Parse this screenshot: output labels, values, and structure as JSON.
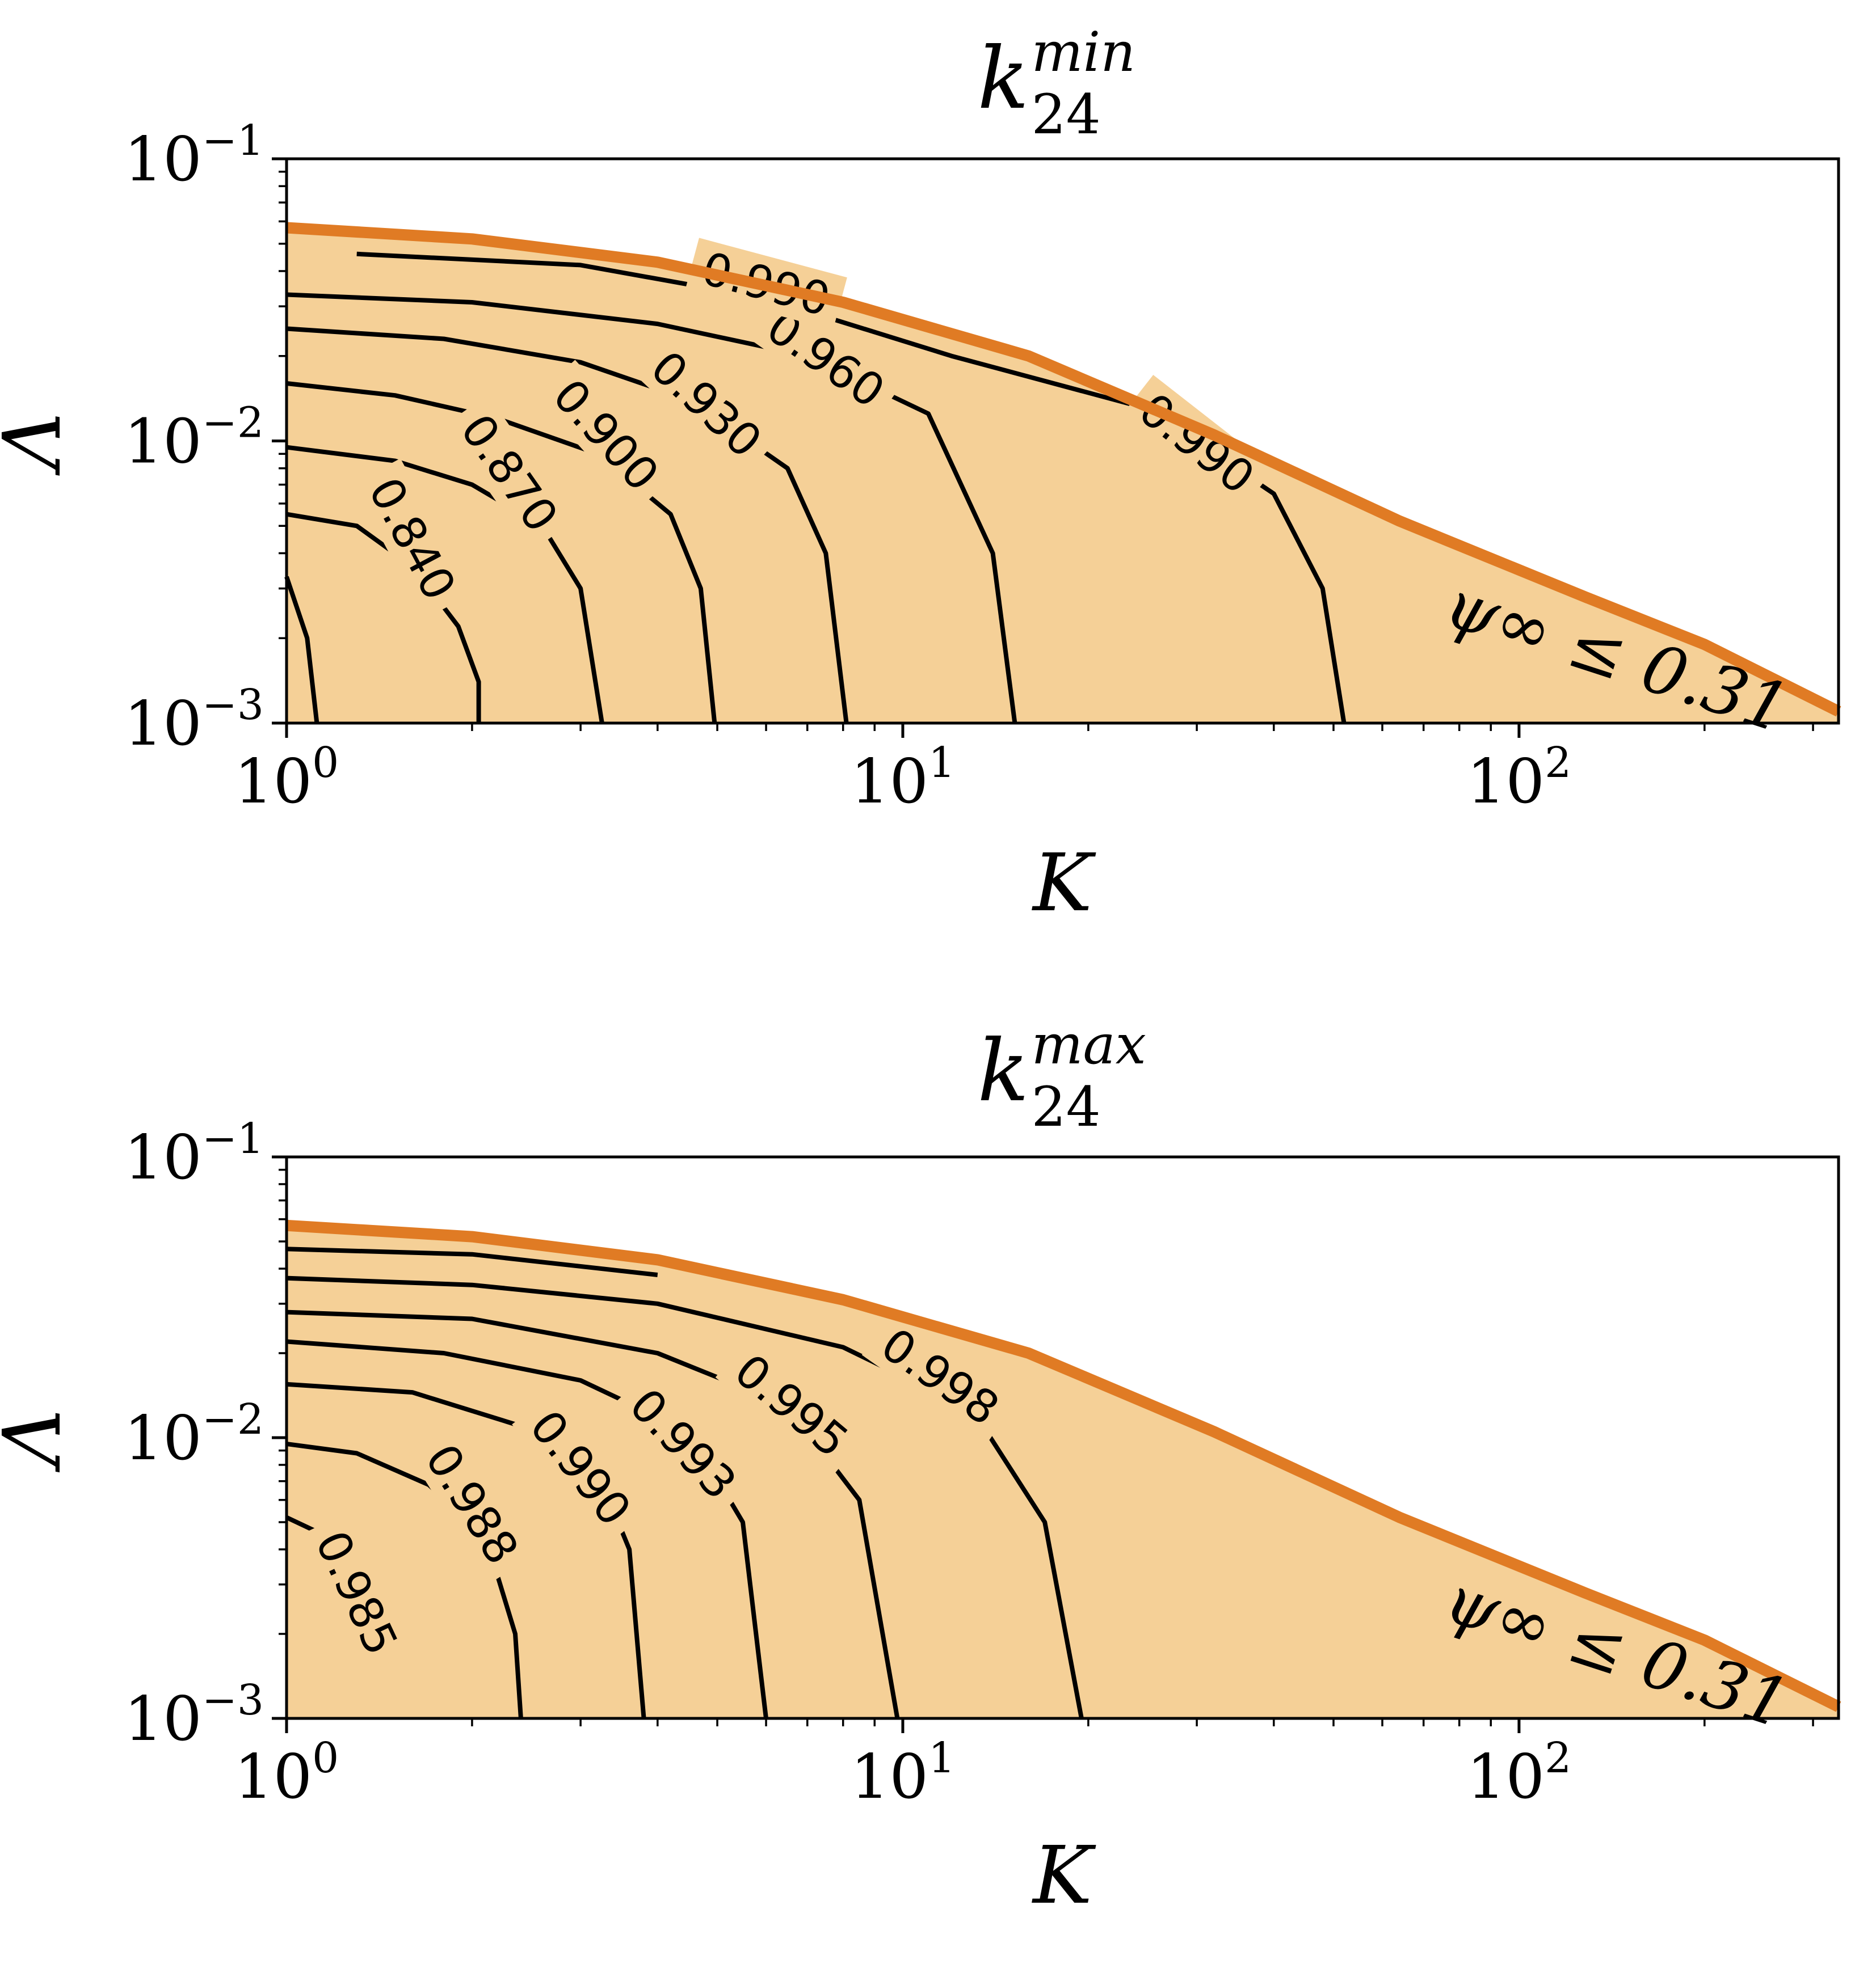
{
  "chart_data": [
    {
      "type": "contour",
      "title": {
        "base": "k",
        "sup": "min",
        "sub": "24"
      },
      "xlabel": "K",
      "ylabel": "Λ",
      "xscale": "log",
      "yscale": "log",
      "xlim": [
        1,
        330
      ],
      "ylim": [
        0.001,
        0.1
      ],
      "x_ticks": [
        {
          "base": "10",
          "exp": "0",
          "value": 1
        },
        {
          "base": "10",
          "exp": "1",
          "value": 10
        },
        {
          "base": "10",
          "exp": "2",
          "value": 100
        }
      ],
      "y_ticks": [
        {
          "base": "10",
          "exp": "−3",
          "value": 0.001
        },
        {
          "base": "10",
          "exp": "−2",
          "value": 0.01
        },
        {
          "base": "10",
          "exp": "−1",
          "value": 0.1
        }
      ],
      "fill_color": "#f5d097",
      "boundary_color": "#e07b24",
      "boundary_label": "ψ∞ ≤ 0.31",
      "boundary": [
        [
          1,
          0.057
        ],
        [
          2,
          0.052
        ],
        [
          4,
          0.043
        ],
        [
          8,
          0.031
        ],
        [
          16,
          0.02
        ],
        [
          32,
          0.0105
        ],
        [
          64,
          0.0052
        ],
        [
          128,
          0.0028
        ],
        [
          200,
          0.0019
        ],
        [
          330,
          0.0011
        ]
      ],
      "contours": [
        {
          "level": "0.840",
          "points": [
            [
              1,
              0.0033
            ],
            [
              1.08,
              0.002
            ],
            [
              1.12,
              0.001
            ]
          ]
        },
        {
          "level": "0.870",
          "points": [
            [
              1,
              0.0055
            ],
            [
              1.3,
              0.005
            ],
            [
              1.6,
              0.0036
            ],
            [
              1.9,
              0.0022
            ],
            [
              2.05,
              0.0014
            ],
            [
              2.05,
              0.001
            ]
          ]
        },
        {
          "level": "0.900",
          "points": [
            [
              1,
              0.0095
            ],
            [
              1.5,
              0.0085
            ],
            [
              2,
              0.007
            ],
            [
              2.6,
              0.005
            ],
            [
              3.0,
              0.003
            ],
            [
              3.25,
              0.001
            ]
          ]
        },
        {
          "level": "0.930",
          "points": [
            [
              1,
              0.016
            ],
            [
              1.5,
              0.0145
            ],
            [
              2.2,
              0.012
            ],
            [
              3.2,
              0.009
            ],
            [
              4.2,
              0.0055
            ],
            [
              4.7,
              0.003
            ],
            [
              4.95,
              0.001
            ]
          ]
        },
        {
          "level": "0.960",
          "points": [
            [
              1,
              0.025
            ],
            [
              1.8,
              0.023
            ],
            [
              3,
              0.019
            ],
            [
              4.5,
              0.014
            ],
            [
              6.5,
              0.008
            ],
            [
              7.5,
              0.004
            ],
            [
              8.1,
              0.001
            ]
          ]
        },
        {
          "level": "0.990",
          "points": [
            [
              1,
              0.033
            ],
            [
              2,
              0.031
            ],
            [
              4,
              0.026
            ],
            [
              7,
              0.02
            ],
            [
              11,
              0.0125
            ],
            [
              14,
              0.004
            ],
            [
              15.2,
              0.001
            ]
          ]
        },
        {
          "level": "0.990",
          "points": [
            [
              1.3,
              0.046
            ],
            [
              3,
              0.042
            ],
            [
              6,
              0.032
            ],
            [
              12,
              0.02
            ],
            [
              25,
              0.013
            ],
            [
              40,
              0.0065
            ],
            [
              48,
              0.003
            ],
            [
              52,
              0.001
            ]
          ]
        }
      ],
      "contour_labels": [
        {
          "text": "0.840",
          "x": 1.6,
          "y": 0.0045,
          "angle": 62
        },
        {
          "text": "0.870",
          "x": 2.3,
          "y": 0.0077,
          "angle": 55
        },
        {
          "text": "0.900",
          "x": 3.3,
          "y": 0.0105,
          "angle": 48
        },
        {
          "text": "0.930",
          "x": 4.8,
          "y": 0.0135,
          "angle": 43
        },
        {
          "text": "0.960",
          "x": 7.5,
          "y": 0.0195,
          "angle": 35
        },
        {
          "text": "0.990",
          "x": 6.0,
          "y": 0.036,
          "angle": 15
        },
        {
          "text": "0.990",
          "x": 30,
          "y": 0.0098,
          "angle": 38
        }
      ]
    },
    {
      "type": "contour",
      "title": {
        "base": "k",
        "sup": "max",
        "sub": "24"
      },
      "xlabel": "K",
      "ylabel": "Λ",
      "xscale": "log",
      "yscale": "log",
      "xlim": [
        1,
        330
      ],
      "ylim": [
        0.001,
        0.1
      ],
      "x_ticks": [
        {
          "base": "10",
          "exp": "0",
          "value": 1
        },
        {
          "base": "10",
          "exp": "1",
          "value": 10
        },
        {
          "base": "10",
          "exp": "2",
          "value": 100
        }
      ],
      "y_ticks": [
        {
          "base": "10",
          "exp": "−3",
          "value": 0.001
        },
        {
          "base": "10",
          "exp": "−2",
          "value": 0.01
        },
        {
          "base": "10",
          "exp": "−1",
          "value": 0.1
        }
      ],
      "fill_color": "#f5d097",
      "boundary_color": "#e07b24",
      "boundary_label": "ψ∞ ≤ 0.31",
      "boundary": [
        [
          1,
          0.057
        ],
        [
          2,
          0.052
        ],
        [
          4,
          0.043
        ],
        [
          8,
          0.031
        ],
        [
          16,
          0.02
        ],
        [
          32,
          0.0105
        ],
        [
          64,
          0.0052
        ],
        [
          128,
          0.0028
        ],
        [
          200,
          0.0019
        ],
        [
          330,
          0.0011
        ]
      ],
      "contours": [
        {
          "level": "0.985",
          "points": [
            [
              1,
              0.0052
            ],
            [
              1.15,
              0.0045
            ]
          ]
        },
        {
          "level": "0.988",
          "points": [
            [
              1,
              0.0095
            ],
            [
              1.3,
              0.0088
            ],
            [
              1.7,
              0.0068
            ],
            [
              2.1,
              0.0045
            ],
            [
              2.35,
              0.002
            ],
            [
              2.4,
              0.001
            ]
          ]
        },
        {
          "level": "0.990",
          "points": [
            [
              1,
              0.0155
            ],
            [
              1.6,
              0.0145
            ],
            [
              2.4,
              0.011
            ],
            [
              3.2,
              0.0075
            ],
            [
              3.6,
              0.004
            ],
            [
              3.8,
              0.001
            ]
          ]
        },
        {
          "level": "0.993",
          "points": [
            [
              1,
              0.022
            ],
            [
              1.8,
              0.02
            ],
            [
              3,
              0.016
            ],
            [
              4.5,
              0.0105
            ],
            [
              5.5,
              0.005
            ],
            [
              6.0,
              0.001
            ]
          ]
        },
        {
          "level": "0.995",
          "points": [
            [
              1,
              0.028
            ],
            [
              2,
              0.0265
            ],
            [
              4,
              0.02
            ],
            [
              6.5,
              0.013
            ],
            [
              8.5,
              0.006
            ],
            [
              9.8,
              0.001
            ]
          ]
        },
        {
          "level": "0.998",
          "points": [
            [
              1,
              0.037
            ],
            [
              2,
              0.035
            ],
            [
              4,
              0.03
            ],
            [
              8,
              0.021
            ],
            [
              13,
              0.0125
            ],
            [
              17,
              0.005
            ],
            [
              19.5,
              0.001
            ]
          ]
        },
        {
          "level": "0.998",
          "points": [
            [
              1,
              0.047
            ],
            [
              2,
              0.045
            ],
            [
              4,
              0.038
            ]
          ]
        }
      ],
      "contour_labels": [
        {
          "text": "0.985",
          "x": 1.3,
          "y": 0.0028,
          "angle": 65
        },
        {
          "text": "0.988",
          "x": 2.0,
          "y": 0.0058,
          "angle": 58
        },
        {
          "text": "0.990",
          "x": 3.0,
          "y": 0.0078,
          "angle": 52
        },
        {
          "text": "0.993",
          "x": 4.4,
          "y": 0.0095,
          "angle": 47
        },
        {
          "text": "0.995",
          "x": 6.6,
          "y": 0.013,
          "angle": 40
        },
        {
          "text": "0.998",
          "x": 11.5,
          "y": 0.0165,
          "angle": 35
        }
      ]
    }
  ]
}
